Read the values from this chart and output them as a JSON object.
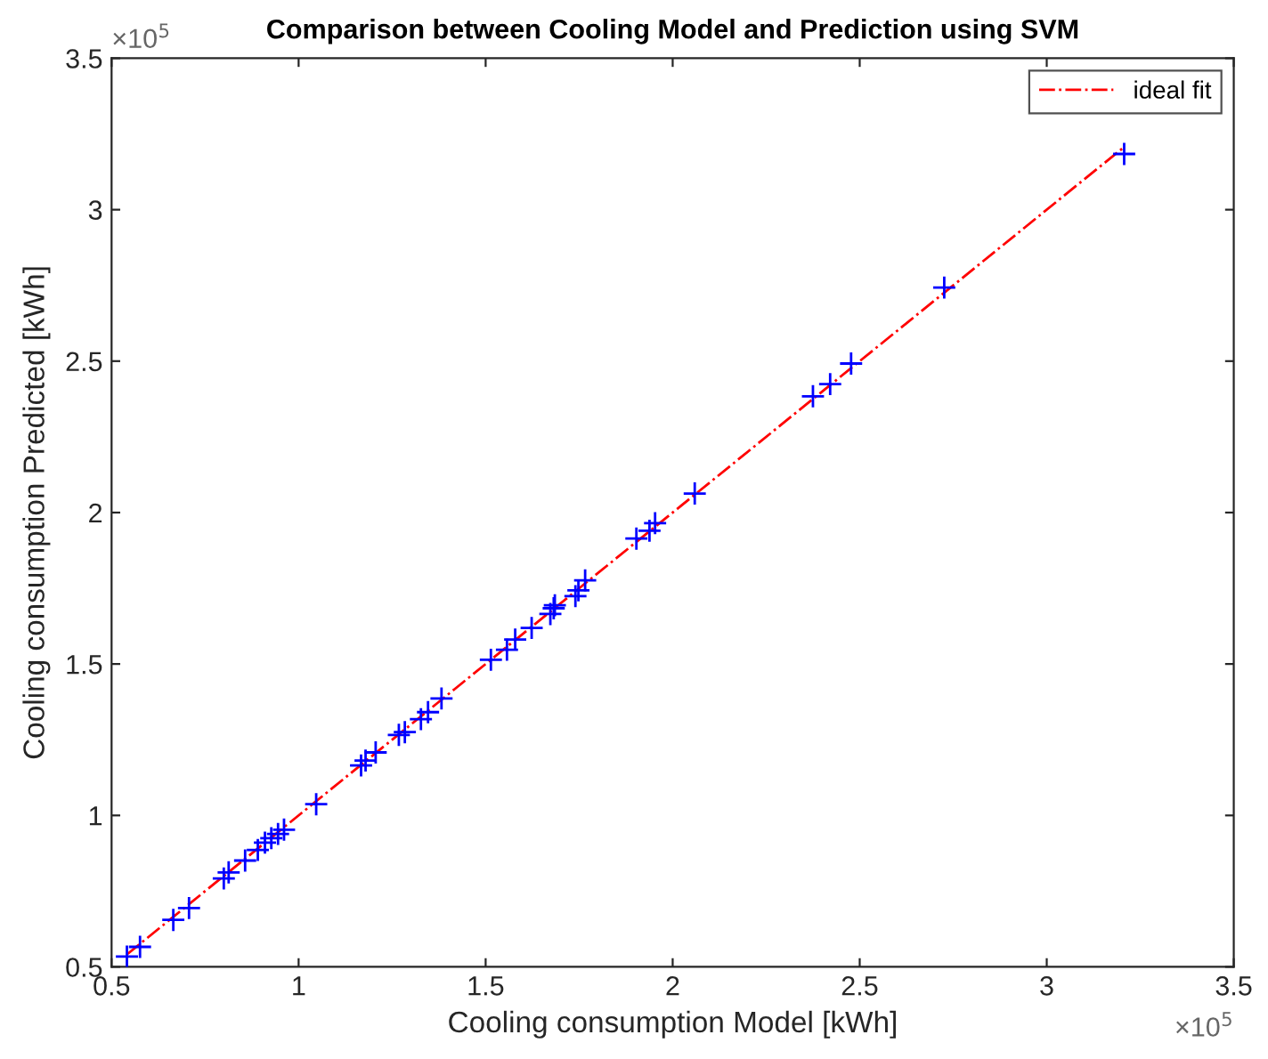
{
  "chart_data": {
    "type": "scatter",
    "title": "Comparison between Cooling Model and Prediction using SVM",
    "xlabel": "Cooling consumption Model [kWh]",
    "ylabel": "Cooling consumption Predicted [kWh]",
    "annotations": [
      "×10$^{5}$",
      "×10$^{5}$"
    ],
    "xlim": [
      0.5,
      3.5
    ],
    "ylim": [
      0.5,
      3.5
    ],
    "xticks": [
      0.5,
      1,
      1.5,
      2,
      2.5,
      3,
      3.5
    ],
    "yticks": [
      0.5,
      1,
      1.5,
      2,
      2.5,
      3,
      3.5
    ],
    "grid": false,
    "legend": "top right",
    "series": [
      {
        "color": "#0000ff",
        "marker": "cross",
        "x": [
          0.541,
          0.576,
          0.665,
          0.707,
          0.8,
          0.813,
          0.857,
          0.891,
          0.91,
          0.927,
          0.945,
          0.961,
          1.047,
          1.167,
          1.179,
          1.206,
          1.268,
          1.284,
          1.327,
          1.346,
          1.382,
          1.514,
          1.557,
          1.579,
          1.623,
          1.673,
          1.682,
          1.685,
          1.74,
          1.748,
          1.766,
          1.903,
          1.938,
          1.953,
          2.059,
          2.375,
          2.421,
          2.477,
          2.726,
          3.207
        ],
        "values": [
          0.534,
          0.566,
          0.655,
          0.694,
          0.792,
          0.812,
          0.851,
          0.886,
          0.91,
          0.925,
          0.939,
          0.953,
          1.037,
          1.165,
          1.181,
          1.208,
          1.266,
          1.275,
          1.318,
          1.341,
          1.386,
          1.514,
          1.547,
          1.581,
          1.619,
          1.665,
          1.684,
          1.694,
          1.724,
          1.743,
          1.776,
          1.914,
          1.94,
          1.965,
          2.063,
          2.384,
          2.424,
          2.492,
          2.743,
          3.184
        ]
      },
      {
        "type": "line",
        "name": "ideal fit",
        "color": "#ff0000",
        "line_style": "dashdot",
        "marker": "none",
        "x": [
          0.541,
          3.207
        ],
        "values": [
          0.541,
          3.207
        ]
      }
    ]
  }
}
